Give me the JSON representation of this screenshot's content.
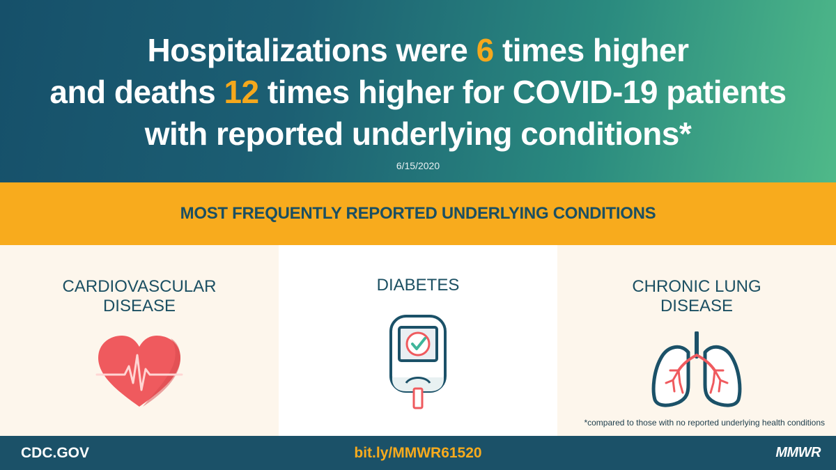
{
  "header": {
    "line1_a": "Hospitalizations were ",
    "line1_num": "6",
    "line1_b": " times higher",
    "line2_a": "and deaths ",
    "line2_num": "12",
    "line2_b": " times higher for COVID-19 patients",
    "line3": "with reported underlying conditions*",
    "date": "6/15/2020"
  },
  "band": {
    "title": "MOST FREQUENTLY REPORTED UNDERLYING CONDITIONS"
  },
  "conditions": [
    {
      "line1": "CARDIOVASCULAR",
      "line2": "DISEASE",
      "icon": "heart-icon"
    },
    {
      "line1": "DIABETES",
      "line2": "",
      "icon": "glucose-meter-icon"
    },
    {
      "line1": "CHRONIC LUNG",
      "line2": "DISEASE",
      "icon": "lungs-icon"
    }
  ],
  "footnote": "*compared to those with no reported underlying health conditions",
  "footer": {
    "site": "CDC.GOV",
    "link": "bit.ly/MMWR61520",
    "brand": "MMWR"
  },
  "colors": {
    "accent": "#f8ab1d",
    "navy": "#1b5168",
    "heart": "#ef5a5e",
    "check": "#3fb59a"
  }
}
